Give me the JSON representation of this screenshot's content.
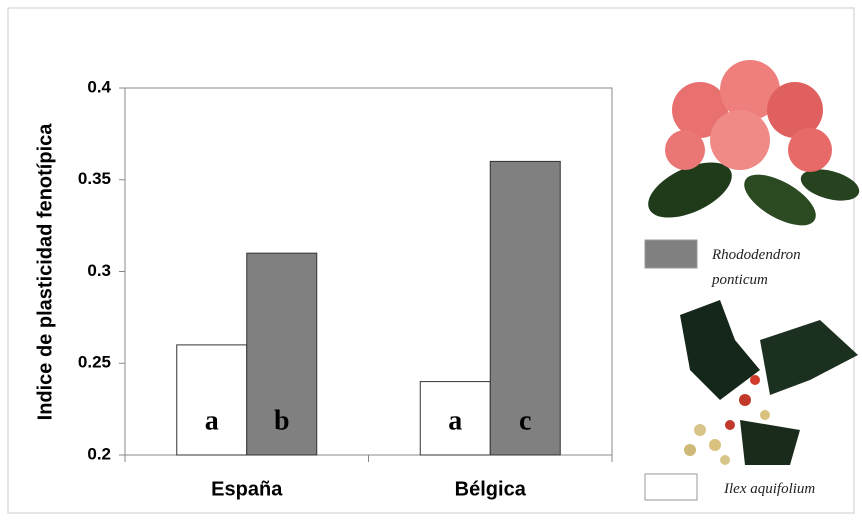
{
  "chart_data": {
    "type": "bar",
    "y_label": "Indice de plasticidad fenotípica",
    "categories": [
      "España",
      "Bélgica"
    ],
    "series": [
      {
        "name": "Ilex aquifolium",
        "color": "#ffffff",
        "values": [
          0.26,
          0.24
        ],
        "letters": [
          "a",
          "a"
        ]
      },
      {
        "name": "Rhododendron ponticum",
        "color": "#808080",
        "values": [
          0.31,
          0.36
        ],
        "letters": [
          "b",
          "c"
        ]
      }
    ],
    "ylim": [
      0.2,
      0.4
    ],
    "yticks": [
      0.2,
      0.25,
      0.3,
      0.35,
      0.4
    ],
    "grid": false
  }
}
